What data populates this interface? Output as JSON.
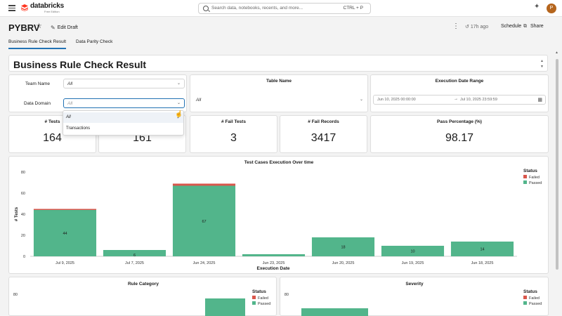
{
  "topbar": {
    "brand": "databricks",
    "brand_sub": "Free Edition",
    "search_placeholder": "Search data, notebooks, recents, and more...",
    "search_shortcut": "CTRL + P",
    "avatar_initial": "P"
  },
  "dashboard": {
    "title": "PYBRV",
    "edit_label": "Edit Draft",
    "last_edit": "17h ago",
    "schedule_label": "Schedule",
    "share_label": "Share",
    "tabs": [
      {
        "label": "Business Rule Check Result",
        "active": true
      },
      {
        "label": "Data Parity Check",
        "active": false
      }
    ]
  },
  "header": {
    "title": "Business Rule Check Result"
  },
  "filters": {
    "team_name_label": "Team Name",
    "team_name_value": "All",
    "data_domain_label": "Data Domain",
    "data_domain_value": "All",
    "data_domain_options": [
      "All",
      "Transactions"
    ],
    "table_name_label": "Table Name",
    "table_name_value": "All",
    "date_range_label": "Execution Date Range",
    "date_from": "Jun 10, 2025 00:00:00",
    "date_to": "Jul 10, 2025 23:59:59"
  },
  "kpis": {
    "tests_label": "# Tests",
    "tests_value": "164",
    "passed_value": "161",
    "fail_tests_label": "# Fail Tests",
    "fail_tests_value": "3",
    "fail_records_label": "# Fail  Records",
    "fail_records_value": "3417",
    "pass_pct_label": "Pass Percentage (%)",
    "pass_pct_value": "98.17"
  },
  "colors": {
    "passed": "#52b58b",
    "failed": "#d9564b",
    "accent": "#2272b4"
  },
  "chart_data": [
    {
      "type": "bar",
      "title": "Test Cases Execution Over time",
      "xlabel": "Execution Date",
      "ylabel": "# Tests",
      "ylim": [
        0,
        80
      ],
      "yticks": [
        0,
        20,
        40,
        60,
        80
      ],
      "categories": [
        "Jul 9, 2025",
        "Jul 7, 2025",
        "Jun 24, 2025",
        "Jun 23, 2025",
        "Jun 20, 2025",
        "Jun 19, 2025",
        "Jun 18, 2025"
      ],
      "series": [
        {
          "name": "Passed",
          "values": [
            44,
            6,
            67,
            2,
            18,
            10,
            14
          ],
          "labels": [
            "44",
            "6",
            "67",
            "",
            "18",
            "10",
            "14"
          ]
        },
        {
          "name": "Failed",
          "values": [
            1,
            0,
            2,
            0,
            0,
            0,
            0
          ]
        }
      ],
      "legend_title": "Status",
      "legend_entries": [
        "Failed",
        "Passed"
      ],
      "legend_position": "right"
    },
    {
      "type": "bar",
      "title": "Rule Category",
      "yticks": [
        80
      ],
      "legend_title": "Status",
      "legend_entries": [
        "Failed",
        "Passed"
      ],
      "legend_position": "right"
    },
    {
      "type": "bar",
      "title": "Severity",
      "yticks": [
        80
      ],
      "legend_title": "Status",
      "legend_entries": [
        "Failed",
        "Passed"
      ],
      "legend_position": "right"
    }
  ]
}
